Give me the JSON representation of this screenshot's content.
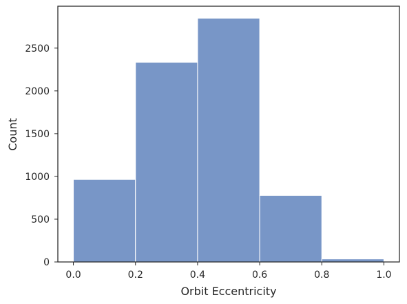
{
  "chart_data": {
    "type": "bar",
    "title": "",
    "xlabel": "Orbit Eccentricity",
    "ylabel": "Count",
    "bins": [
      {
        "x0": 0.0,
        "x1": 0.2,
        "count": 965
      },
      {
        "x0": 0.2,
        "x1": 0.4,
        "count": 2335
      },
      {
        "x0": 0.4,
        "x1": 0.6,
        "count": 2850
      },
      {
        "x0": 0.6,
        "x1": 0.8,
        "count": 778
      },
      {
        "x0": 0.8,
        "x1": 1.0,
        "count": 35
      }
    ],
    "xlim": [
      -0.05,
      1.05
    ],
    "ylim": [
      0,
      2990
    ],
    "xticks": [
      0.0,
      0.2,
      0.4,
      0.6,
      0.8,
      1.0
    ],
    "xtick_labels": [
      "0.0",
      "0.2",
      "0.4",
      "0.6",
      "0.8",
      "1.0"
    ],
    "yticks": [
      0,
      500,
      1000,
      1500,
      2000,
      2500
    ],
    "ytick_labels": [
      "0",
      "500",
      "1000",
      "1500",
      "2000",
      "2500"
    ],
    "bar_color": "#7896c7",
    "edge_color": "#ffffff",
    "grid": false,
    "legend": "none"
  }
}
